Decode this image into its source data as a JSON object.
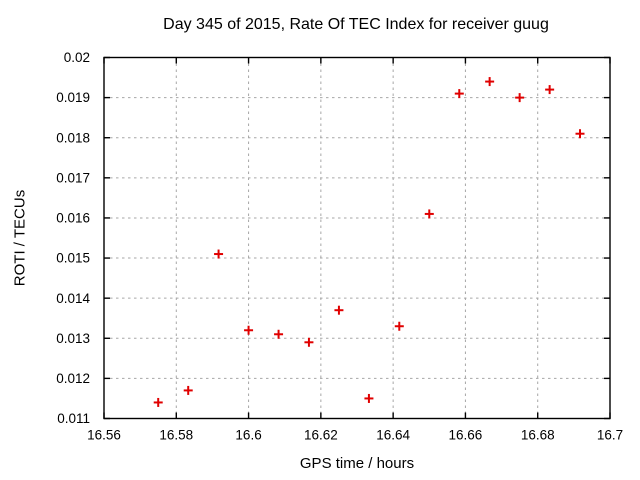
{
  "title": "Day 345 of 2015, Rate Of TEC Index for receiver guug",
  "chart_data": {
    "type": "scatter",
    "title": "Day 345 of 2015, Rate Of TEC Index for receiver guug",
    "xlabel": "GPS time / hours",
    "ylabel": "ROTI / TECUs",
    "xlim": [
      16.56,
      16.7
    ],
    "ylim": [
      0.011,
      0.02
    ],
    "x_tick_labels": [
      "16.56",
      "16.58",
      "16.6",
      "16.62",
      "16.64",
      "16.66",
      "16.68",
      "16.7"
    ],
    "y_tick_labels": [
      "0.011",
      "0.012",
      "0.013",
      "0.014",
      "0.015",
      "0.016",
      "0.017",
      "0.018",
      "0.019",
      "0.02"
    ],
    "grid": true,
    "legend": "none",
    "marker": "plus",
    "marker_color": "#e00000",
    "grid_color": "#a6a6a6",
    "border_color": "#000000",
    "points": [
      {
        "x": 16.575,
        "y": 0.0114
      },
      {
        "x": 16.5833,
        "y": 0.0117
      },
      {
        "x": 16.5917,
        "y": 0.0151
      },
      {
        "x": 16.6,
        "y": 0.0132
      },
      {
        "x": 16.6083,
        "y": 0.0131
      },
      {
        "x": 16.6167,
        "y": 0.0129
      },
      {
        "x": 16.625,
        "y": 0.0137
      },
      {
        "x": 16.6333,
        "y": 0.0115
      },
      {
        "x": 16.6417,
        "y": 0.0133
      },
      {
        "x": 16.65,
        "y": 0.0161
      },
      {
        "x": 16.6583,
        "y": 0.0191
      },
      {
        "x": 16.6667,
        "y": 0.0194
      },
      {
        "x": 16.675,
        "y": 0.019
      },
      {
        "x": 16.6833,
        "y": 0.0192
      },
      {
        "x": 16.6917,
        "y": 0.0181
      }
    ]
  }
}
